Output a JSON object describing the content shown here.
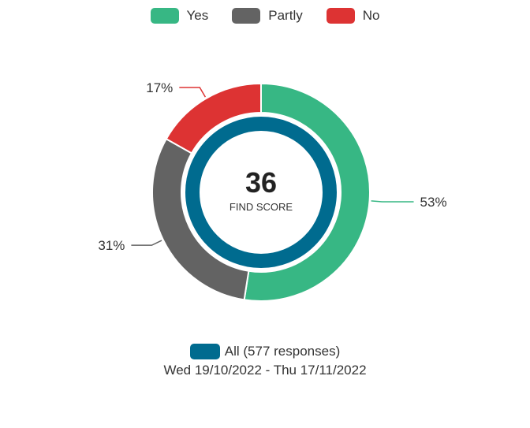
{
  "chart_data": {
    "type": "donut",
    "series": [
      {
        "label": "Yes",
        "value": 53,
        "color": "#37b784"
      },
      {
        "label": "Partly",
        "value": 31,
        "color": "#636363"
      },
      {
        "label": "No",
        "value": 17,
        "color": "#dd3333"
      }
    ],
    "slice_labels": [
      "53%",
      "31%",
      "17%"
    ],
    "center": {
      "value": "36",
      "label": "FIND SCORE",
      "ring_color": "#006b8f"
    },
    "legend_position": "top"
  },
  "footer": {
    "series_label": "All (577 responses)",
    "series_color": "#006b8f",
    "date_range": "Wed 19/10/2022 - Thu 17/11/2022"
  }
}
